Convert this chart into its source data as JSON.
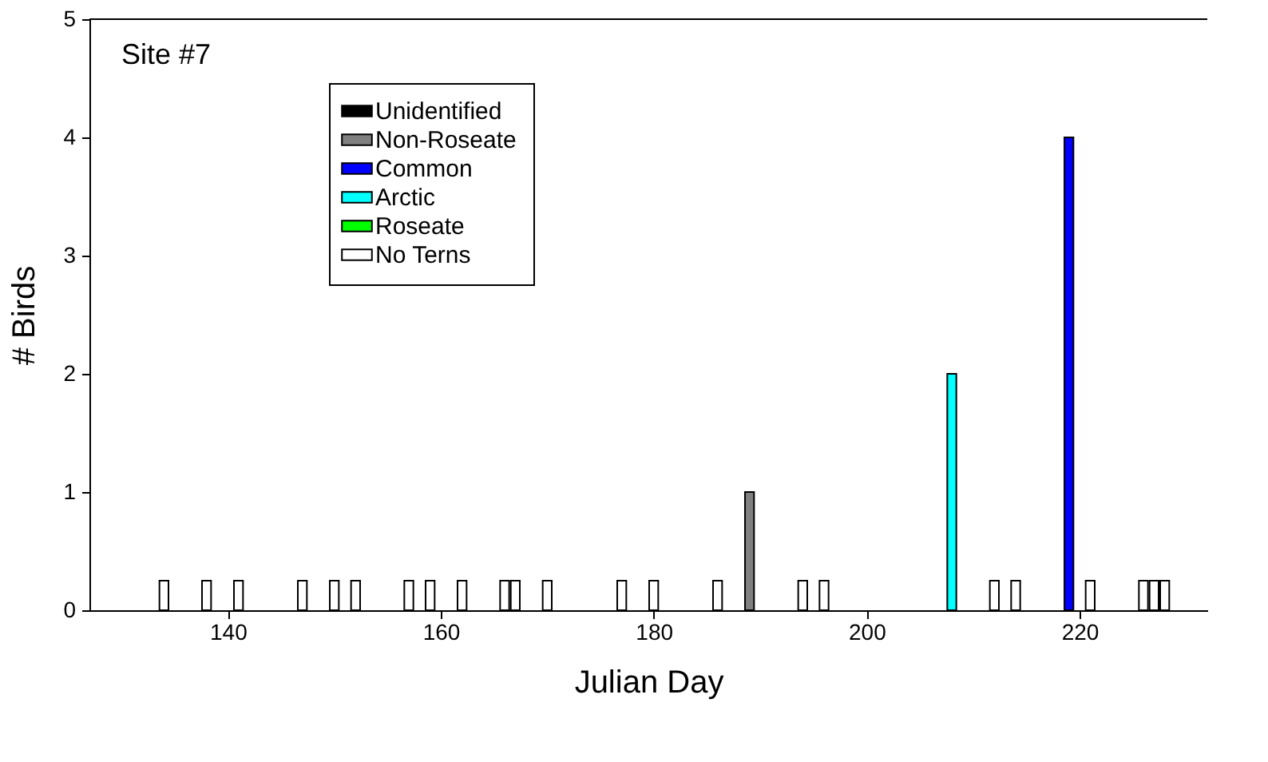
{
  "chart_data": {
    "type": "bar",
    "xlabel": "Julian Day",
    "ylabel": "# Birds",
    "annotations": [
      "Site #7"
    ],
    "xlim": [
      127,
      232
    ],
    "xticks": [
      140,
      160,
      180,
      200,
      220
    ],
    "ylim": [
      0,
      5
    ],
    "yticks": [
      0,
      1,
      2,
      3,
      4,
      5
    ],
    "grid": false,
    "legend": "top left",
    "series": [
      {
        "name": "Unidentified",
        "color": "#000000"
      },
      {
        "name": "Non-Roseate",
        "color": "#808080",
        "x": [
          189
        ],
        "values": [
          1
        ]
      },
      {
        "name": "Common",
        "color": "#0000ff",
        "x": [
          219
        ],
        "values": [
          4
        ]
      },
      {
        "name": "Arctic",
        "color": "#00ffff",
        "x": [
          208
        ],
        "values": [
          2
        ]
      },
      {
        "name": "Roseate",
        "color": "#00ff00"
      },
      {
        "name": "No Terns",
        "color": "#ffffff",
        "x": [
          134,
          138,
          141,
          147,
          150,
          152,
          157,
          159,
          162,
          166,
          167,
          170,
          177,
          180,
          186,
          194,
          196,
          212,
          214,
          221,
          226,
          227,
          228
        ],
        "values": [
          0.25,
          0.25,
          0.25,
          0.25,
          0.25,
          0.25,
          0.25,
          0.25,
          0.25,
          0.25,
          0.25,
          0.25,
          0.25,
          0.25,
          0.25,
          0.25,
          0.25,
          0.25,
          0.25,
          0.25,
          0.25,
          0.25,
          0.25
        ]
      }
    ]
  }
}
